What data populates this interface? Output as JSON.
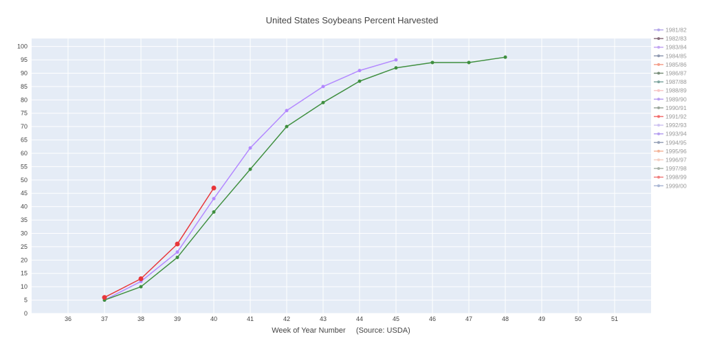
{
  "chart_data": {
    "type": "line",
    "title": "United States Soybeans Percent Harvested",
    "xlabel": "Week of Year Number     (Source: USDA)",
    "ylabel": "",
    "xlim": [
      35,
      52
    ],
    "ylim": [
      0,
      103
    ],
    "x_ticks": [
      36,
      37,
      38,
      39,
      40,
      41,
      42,
      43,
      44,
      45,
      46,
      47,
      48,
      49,
      50,
      51
    ],
    "y_ticks": [
      0,
      5,
      10,
      15,
      20,
      25,
      30,
      35,
      40,
      45,
      50,
      55,
      60,
      65,
      70,
      75,
      80,
      85,
      90,
      95,
      100
    ],
    "grid": true,
    "legend_position": "right",
    "legend": [
      {
        "name": "1981/82",
        "color": "#b3a6e8"
      },
      {
        "name": "1982/83",
        "color": "#8a6f7d"
      },
      {
        "name": "1983/84",
        "color": "#c2a5f2"
      },
      {
        "name": "1984/85",
        "color": "#8f99b0"
      },
      {
        "name": "1985/86",
        "color": "#f4a08c"
      },
      {
        "name": "1986/87",
        "color": "#7a8f7a"
      },
      {
        "name": "1987/88",
        "color": "#7fa6a0"
      },
      {
        "name": "1988/89",
        "color": "#f7c6c6"
      },
      {
        "name": "1989/90",
        "color": "#b89ef0"
      },
      {
        "name": "1990/91",
        "color": "#9aa69a"
      },
      {
        "name": "1991/92",
        "color": "#f26b6b"
      },
      {
        "name": "1992/93",
        "color": "#cfc3f2"
      },
      {
        "name": "1993/94",
        "color": "#b59ff0"
      },
      {
        "name": "1994/95",
        "color": "#97a2b8"
      },
      {
        "name": "1995/96",
        "color": "#f3b59a"
      },
      {
        "name": "1996/97",
        "color": "#f3cfc2"
      },
      {
        "name": "1997/98",
        "color": "#a9b3a9"
      },
      {
        "name": "1998/99",
        "color": "#f07f7f"
      },
      {
        "name": "1999/00",
        "color": "#aab7d4"
      }
    ],
    "series": [
      {
        "color": "#b388ff",
        "marker_size": 2.5,
        "x": [
          37,
          38,
          39,
          40,
          41,
          42,
          43,
          44,
          45
        ],
        "y": [
          5,
          12,
          23,
          43,
          62,
          76,
          85,
          91,
          95
        ]
      },
      {
        "color": "#3f8f3f",
        "marker_size": 2.5,
        "x": [
          37,
          38,
          39,
          40,
          41,
          42,
          43,
          44,
          45,
          46,
          47,
          48
        ],
        "y": [
          5,
          10,
          21,
          38,
          54,
          70,
          79,
          87,
          92,
          94,
          94,
          96
        ]
      },
      {
        "color": "#e8363a",
        "marker_size": 3.5,
        "x": [
          37,
          38,
          39,
          40
        ],
        "y": [
          6,
          13,
          26,
          47
        ]
      }
    ]
  }
}
